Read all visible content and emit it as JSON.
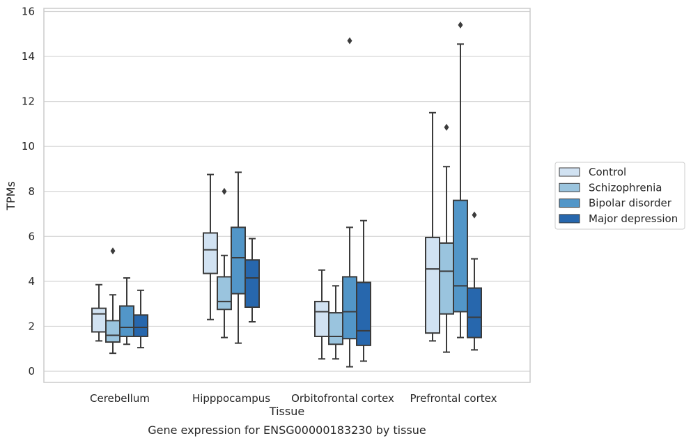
{
  "chart_data": {
    "type": "box",
    "title": "",
    "caption": "Gene expression for ENSG00000183230 by tissue",
    "xlabel": "Tissue",
    "ylabel": "TPMs",
    "ylim": [
      -0.5,
      16.2
    ],
    "yticks": [
      0,
      2,
      4,
      6,
      8,
      10,
      12,
      14,
      16
    ],
    "grid": true,
    "legend_position": "right",
    "categories": [
      "Cerebellum",
      "Hipppocampus",
      "Orbitofrontal cortex",
      "Prefrontal cortex"
    ],
    "series": [
      {
        "name": "Control",
        "color": "#d1e2f2",
        "boxes": [
          {
            "whislo": 1.35,
            "q1": 1.75,
            "med": 2.55,
            "q3": 2.8,
            "whishi": 3.85,
            "fliers": []
          },
          {
            "whislo": 2.3,
            "q1": 4.35,
            "med": 5.4,
            "q3": 6.15,
            "whishi": 8.75,
            "fliers": []
          },
          {
            "whislo": 0.55,
            "q1": 1.55,
            "med": 2.65,
            "q3": 3.1,
            "whishi": 4.5,
            "fliers": []
          },
          {
            "whislo": 1.35,
            "q1": 1.7,
            "med": 4.55,
            "q3": 5.95,
            "whishi": 11.5,
            "fliers": []
          }
        ]
      },
      {
        "name": "Schizophrenia",
        "color": "#9ac4de",
        "boxes": [
          {
            "whislo": 0.8,
            "q1": 1.3,
            "med": 1.6,
            "q3": 2.25,
            "whishi": 3.4,
            "fliers": [
              5.35
            ]
          },
          {
            "whislo": 1.5,
            "q1": 2.75,
            "med": 3.1,
            "q3": 4.2,
            "whishi": 5.15,
            "fliers": [
              8.0
            ]
          },
          {
            "whislo": 0.55,
            "q1": 1.2,
            "med": 1.55,
            "q3": 2.6,
            "whishi": 3.8,
            "fliers": []
          },
          {
            "whislo": 0.85,
            "q1": 2.55,
            "med": 4.45,
            "q3": 5.7,
            "whishi": 9.1,
            "fliers": [
              10.85
            ]
          }
        ]
      },
      {
        "name": "Bipolar disorder",
        "color": "#5296c8",
        "boxes": [
          {
            "whislo": 1.2,
            "q1": 1.55,
            "med": 1.95,
            "q3": 2.9,
            "whishi": 4.15,
            "fliers": []
          },
          {
            "whislo": 1.25,
            "q1": 3.45,
            "med": 5.05,
            "q3": 6.4,
            "whishi": 8.85,
            "fliers": []
          },
          {
            "whislo": 0.2,
            "q1": 1.45,
            "med": 2.65,
            "q3": 4.2,
            "whishi": 6.4,
            "fliers": [
              14.7
            ]
          },
          {
            "whislo": 1.5,
            "q1": 2.65,
            "med": 3.8,
            "q3": 7.6,
            "whishi": 14.55,
            "fliers": [
              15.4
            ]
          }
        ]
      },
      {
        "name": "Major depression",
        "color": "#2767ad",
        "boxes": [
          {
            "whislo": 1.05,
            "q1": 1.55,
            "med": 1.95,
            "q3": 2.5,
            "whishi": 3.6,
            "fliers": []
          },
          {
            "whislo": 2.2,
            "q1": 2.85,
            "med": 4.15,
            "q3": 4.95,
            "whishi": 5.9,
            "fliers": []
          },
          {
            "whislo": 0.45,
            "q1": 1.15,
            "med": 1.8,
            "q3": 3.95,
            "whishi": 6.7,
            "fliers": []
          },
          {
            "whislo": 0.95,
            "q1": 1.5,
            "med": 2.4,
            "q3": 3.7,
            "whishi": 5.0,
            "fliers": [
              6.95
            ]
          }
        ]
      }
    ]
  }
}
